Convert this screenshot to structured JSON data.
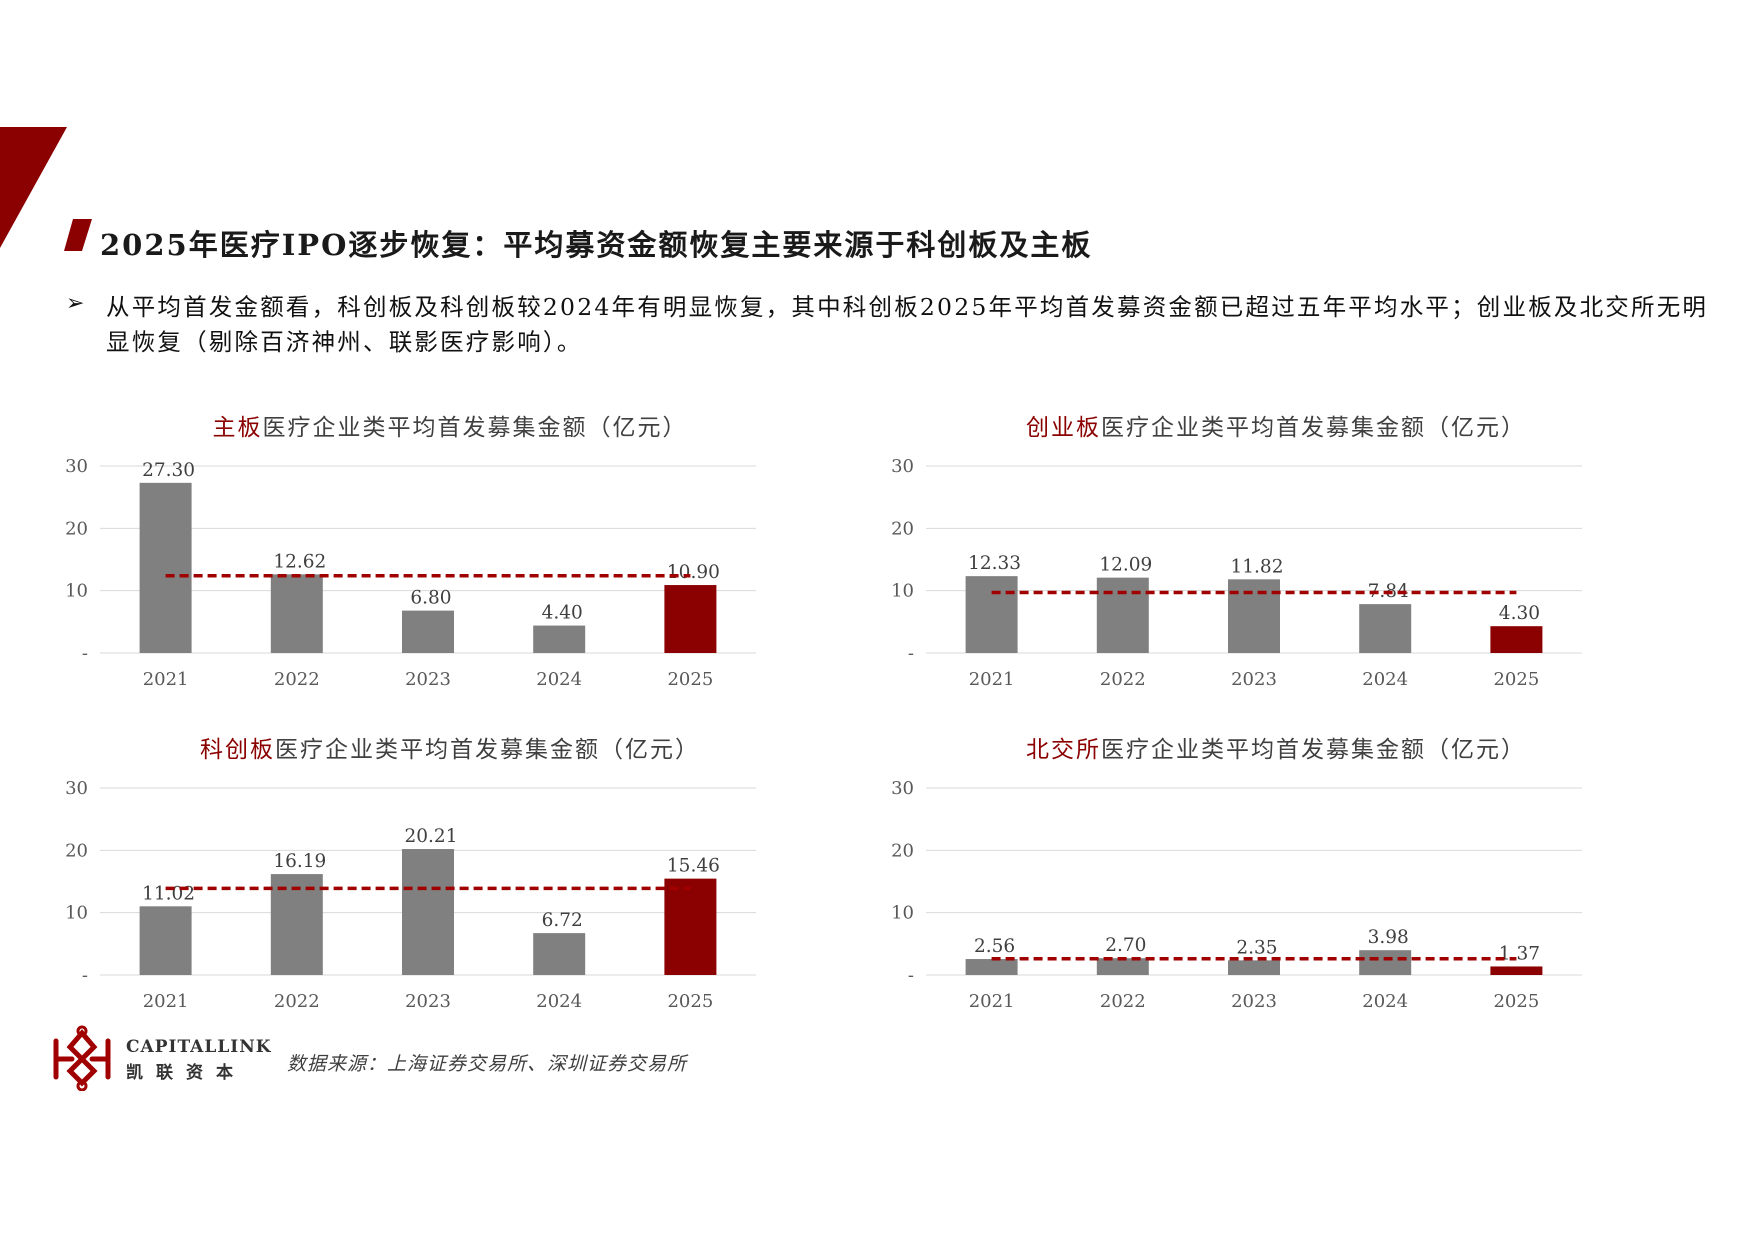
{
  "page": {
    "title": "2025年医疗IPO逐步恢复：平均募资金额恢复主要来源于科创板及主板",
    "bullet": "从平均首发金额看，科创板及科创板较2024年有明显恢复，其中科创板2025年平均首发募资金额已超过五年平均水平；创业板及北交所无明显恢复（剔除百济神州、联影医疗影响）。",
    "source": "数据来源：上海证券交易所、深圳证券交易所",
    "logo_name": "CAPITALLINK",
    "logo_cn": "凯联资本"
  },
  "colors": {
    "accent": "#8b0000",
    "bar_gray": "#808080",
    "bar_highlight": "#8b0000",
    "avg_line": "#a00000",
    "grid": "#d9d9d9"
  },
  "chart_data": [
    {
      "type": "bar",
      "title_accent": "主板",
      "title_rest": "医疗企业类平均首发募集金额（亿元）",
      "categories": [
        "2021",
        "2022",
        "2023",
        "2024",
        "2025"
      ],
      "values": [
        27.3,
        12.62,
        6.8,
        4.4,
        10.9
      ],
      "labels": [
        "27.30",
        "12.62",
        "6.80",
        "4.40",
        "10.90"
      ],
      "average_line": 12.4,
      "highlight_index": 4,
      "ylim": [
        0,
        30
      ],
      "yticks": [
        "-",
        "10",
        "20",
        "30"
      ],
      "grid": true
    },
    {
      "type": "bar",
      "title_accent": "创业板",
      "title_rest": "医疗企业类平均首发募集金额（亿元）",
      "categories": [
        "2021",
        "2022",
        "2023",
        "2024",
        "2025"
      ],
      "values": [
        12.33,
        12.09,
        11.82,
        7.84,
        4.3
      ],
      "labels": [
        "12.33",
        "12.09",
        "11.82",
        "7.84",
        "4.30"
      ],
      "average_line": 9.7,
      "highlight_index": 4,
      "ylim": [
        0,
        30
      ],
      "yticks": [
        "-",
        "10",
        "20",
        "30"
      ],
      "grid": true
    },
    {
      "type": "bar",
      "title_accent": "科创板",
      "title_rest": "医疗企业类平均首发募集金额（亿元）",
      "categories": [
        "2021",
        "2022",
        "2023",
        "2024",
        "2025"
      ],
      "values": [
        11.02,
        16.19,
        20.21,
        6.72,
        15.46
      ],
      "labels": [
        "11.02",
        "16.19",
        "20.21",
        "6.72",
        "15.46"
      ],
      "average_line": 13.9,
      "highlight_index": 4,
      "ylim": [
        0,
        30
      ],
      "yticks": [
        "-",
        "10",
        "20",
        "30"
      ],
      "grid": true
    },
    {
      "type": "bar",
      "title_accent": "北交所",
      "title_rest": "医疗企业类平均首发募集金额（亿元）",
      "categories": [
        "2021",
        "2022",
        "2023",
        "2024",
        "2025"
      ],
      "values": [
        2.56,
        2.7,
        2.35,
        3.98,
        1.37
      ],
      "labels": [
        "2.56",
        "2.70",
        "2.35",
        "3.98",
        "1.37"
      ],
      "average_line": 2.6,
      "highlight_index": 4,
      "ylim": [
        0,
        30
      ],
      "yticks": [
        "-",
        "10",
        "20",
        "30"
      ],
      "grid": true
    }
  ]
}
